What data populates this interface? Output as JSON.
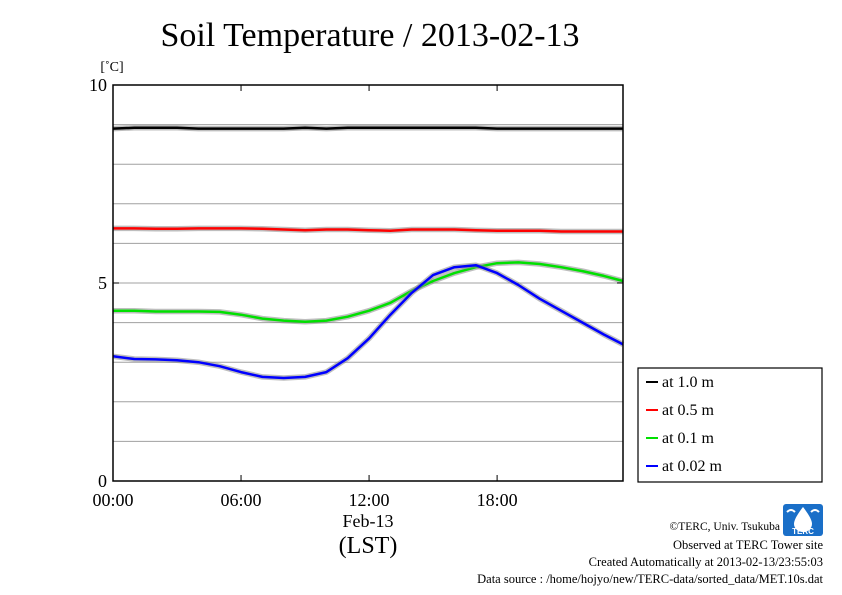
{
  "chart_data": {
    "type": "line",
    "title": "Soil Temperature / 2013-02-13",
    "ylabel": "[˚C]",
    "xlabel_date": "Feb-13",
    "xlabel_tz": "(LST)",
    "ylim": [
      0,
      10
    ],
    "y_ticks": [
      0,
      5,
      10
    ],
    "y_tick_labels": [
      "0",
      "5",
      "10"
    ],
    "y_grid_step": 1,
    "xlim": [
      0,
      23.9
    ],
    "x_ticks": [
      0,
      6,
      12,
      18
    ],
    "x_tick_labels": [
      "00:00",
      "06:00",
      "12:00",
      "18:00"
    ],
    "grid": true,
    "legend_position": "right",
    "series": [
      {
        "name": "at 1.0 m",
        "color": "#000000",
        "x": [
          0,
          1,
          2,
          3,
          4,
          5,
          6,
          7,
          8,
          9,
          10,
          11,
          12,
          13,
          14,
          15,
          16,
          17,
          18,
          19,
          20,
          21,
          22,
          23,
          23.9
        ],
        "y": [
          8.9,
          8.92,
          8.92,
          8.92,
          8.9,
          8.9,
          8.9,
          8.9,
          8.9,
          8.92,
          8.9,
          8.92,
          8.92,
          8.92,
          8.92,
          8.92,
          8.92,
          8.92,
          8.9,
          8.9,
          8.9,
          8.9,
          8.9,
          8.9,
          8.9
        ]
      },
      {
        "name": "at 0.5 m",
        "color": "#ff0000",
        "x": [
          0,
          1,
          2,
          3,
          4,
          5,
          6,
          7,
          8,
          9,
          10,
          11,
          12,
          13,
          14,
          15,
          16,
          17,
          18,
          19,
          20,
          21,
          22,
          23,
          23.9
        ],
        "y": [
          6.38,
          6.38,
          6.37,
          6.37,
          6.38,
          6.38,
          6.38,
          6.37,
          6.35,
          6.33,
          6.35,
          6.35,
          6.33,
          6.32,
          6.35,
          6.35,
          6.35,
          6.33,
          6.32,
          6.32,
          6.32,
          6.3,
          6.3,
          6.3,
          6.3
        ]
      },
      {
        "name": "at 0.1 m",
        "color": "#00e000",
        "x": [
          0,
          1,
          2,
          3,
          4,
          5,
          6,
          7,
          8,
          9,
          10,
          11,
          12,
          13,
          14,
          15,
          16,
          17,
          18,
          19,
          20,
          21,
          22,
          23,
          23.9
        ],
        "y": [
          4.3,
          4.3,
          4.28,
          4.28,
          4.28,
          4.27,
          4.2,
          4.1,
          4.05,
          4.02,
          4.05,
          4.15,
          4.3,
          4.5,
          4.8,
          5.05,
          5.25,
          5.4,
          5.5,
          5.52,
          5.48,
          5.4,
          5.3,
          5.18,
          5.05
        ]
      },
      {
        "name": "at 0.02 m",
        "color": "#0000ff",
        "x": [
          0,
          1,
          2,
          3,
          4,
          5,
          6,
          7,
          8,
          9,
          10,
          11,
          12,
          13,
          14,
          15,
          16,
          17,
          18,
          19,
          20,
          21,
          22,
          23,
          23.9
        ],
        "y": [
          3.15,
          3.08,
          3.07,
          3.05,
          3.0,
          2.9,
          2.75,
          2.63,
          2.6,
          2.63,
          2.75,
          3.1,
          3.6,
          4.2,
          4.75,
          5.2,
          5.4,
          5.45,
          5.25,
          4.95,
          4.6,
          4.3,
          4.0,
          3.7,
          3.45
        ]
      }
    ]
  },
  "footer": {
    "copyright": "©TERC, Univ. Tsukuba",
    "observed": "Observed at TERC Tower site",
    "created": "Created Automatically at 2013-02-13/23:55:03",
    "source": "Data source : /home/hojyo/new/TERC-data/sorted_data/MET.10s.dat"
  },
  "logo": {
    "text": "TERC",
    "color": "#1a6fc8"
  }
}
